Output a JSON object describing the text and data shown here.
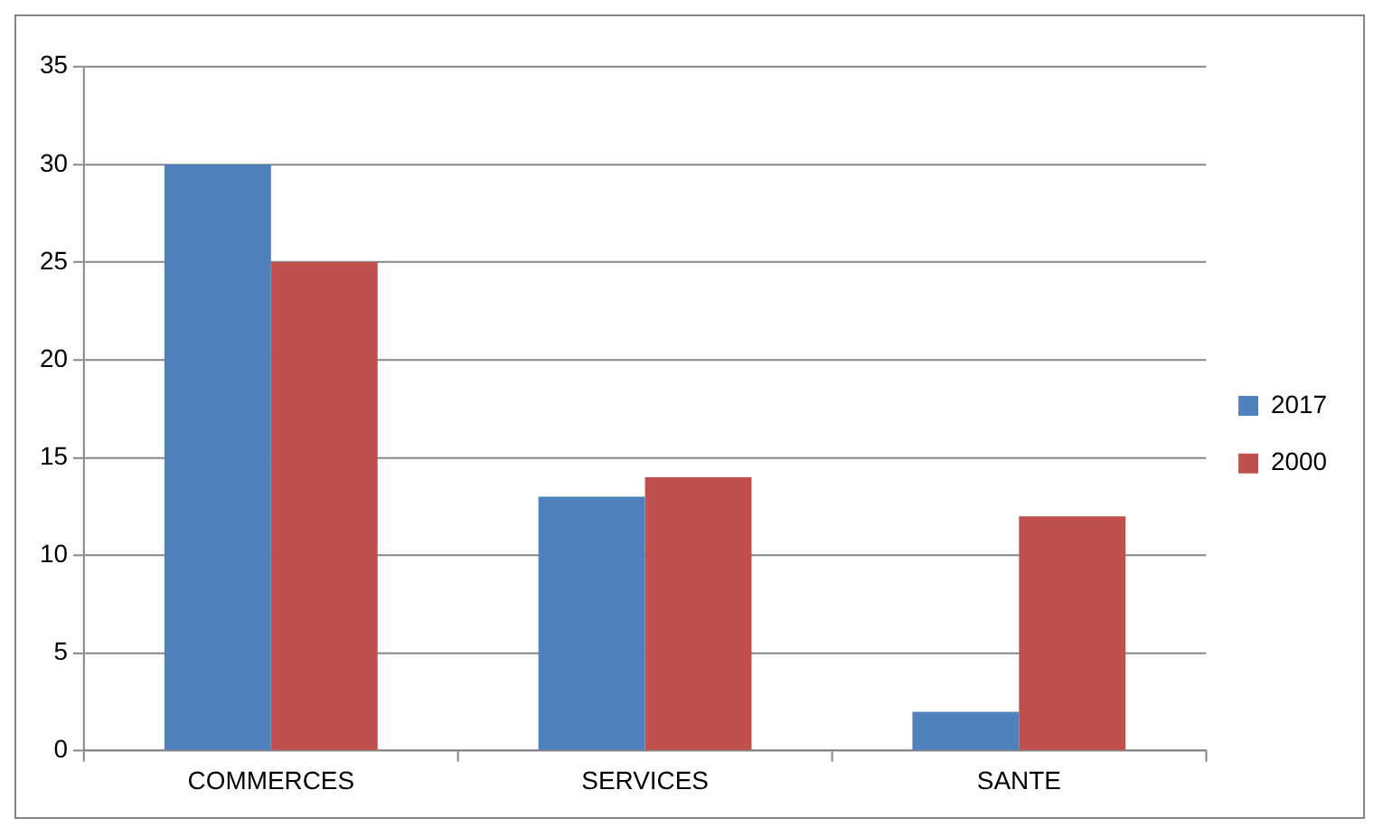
{
  "chart_data": {
    "type": "bar",
    "categories": [
      "COMMERCES",
      "SERVICES",
      "SANTE"
    ],
    "series": [
      {
        "name": "2017",
        "color": "#4f81bd",
        "values": [
          30,
          13,
          2
        ]
      },
      {
        "name": "2000",
        "color": "#c0504d",
        "values": [
          25,
          14,
          12
        ]
      }
    ],
    "ylim": [
      0,
      35
    ],
    "yticks": [
      0,
      5,
      10,
      15,
      20,
      25,
      30,
      35
    ],
    "grid": "y",
    "legend": "right"
  }
}
